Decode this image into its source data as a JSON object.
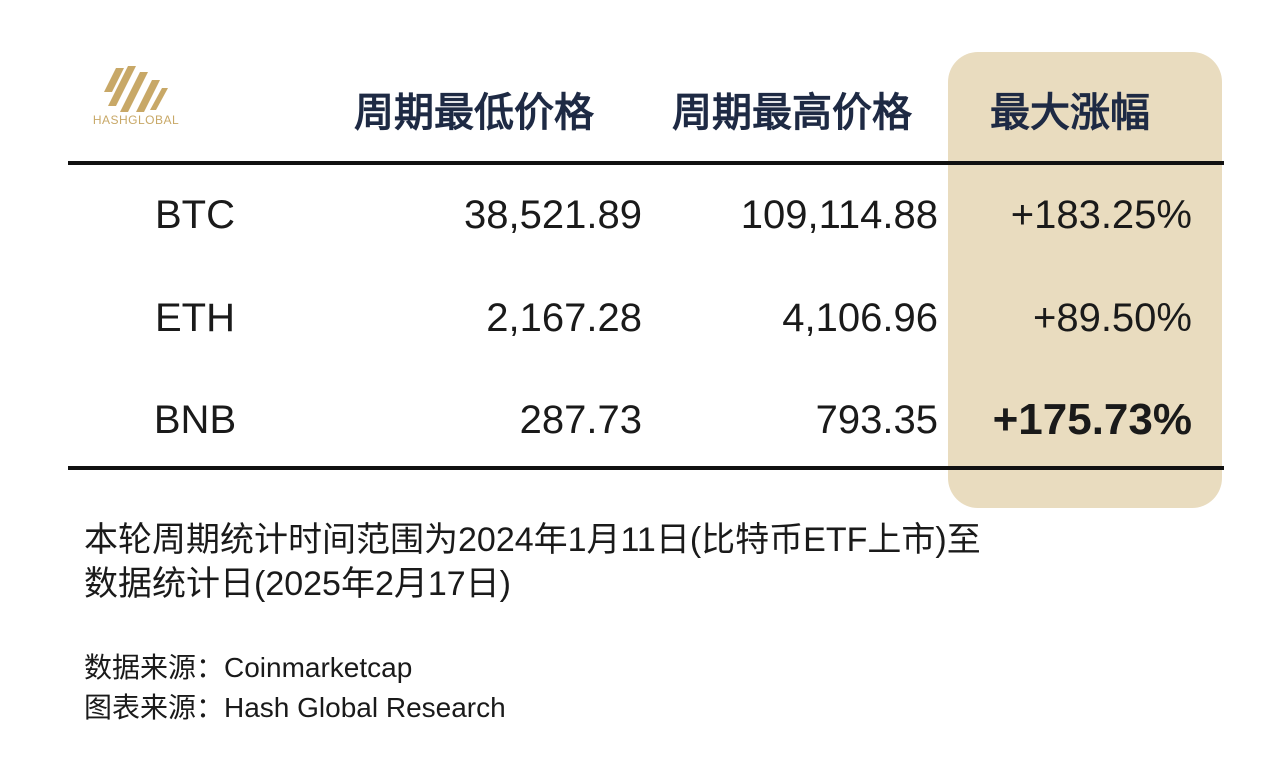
{
  "logo": {
    "text": "HASHGLOBAL",
    "color": "#c8a867"
  },
  "highlight_color": "#e9dcbf",
  "chart_data": {
    "type": "table",
    "columns": [
      "",
      "周期最低价格",
      "周期最高价格",
      "最大涨幅"
    ],
    "rows": [
      {
        "asset": "BTC",
        "low": "38,521.89",
        "high": "109,114.88",
        "max_gain": "+183.25%"
      },
      {
        "asset": "ETH",
        "low": "2,167.28",
        "high": "4,106.96",
        "max_gain": "+89.50%"
      },
      {
        "asset": "BNB",
        "low": "287.73",
        "high": "793.35",
        "max_gain": "+175.73%"
      }
    ],
    "highlighted_column": "最大涨幅",
    "emphasized_cell": "BNB max_gain"
  },
  "note": {
    "line1": "本轮周期统计时间范围为2024年1月11日(比特币ETF上市)至",
    "line2": "数据统计日(2025年2月17日)"
  },
  "sources": {
    "data": "数据来源：Coinmarketcap",
    "chart": "图表来源：Hash Global Research"
  }
}
